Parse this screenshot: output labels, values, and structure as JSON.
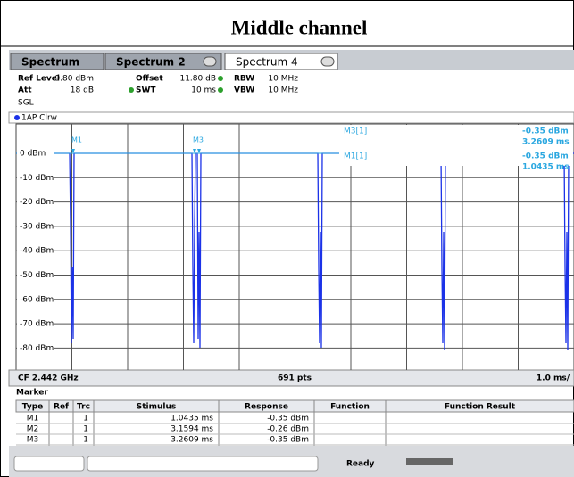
{
  "title": "Middle channel",
  "tabs": [
    "Spectrum",
    "Spectrum 2",
    "Spectrum 4"
  ],
  "settings": [
    [
      {
        "label": "Ref Level",
        "value": "9.80 dBm"
      },
      {
        "label": "Offset",
        "value": "11.80 dB"
      },
      {
        "label": "RBW",
        "value": "10 MHz"
      }
    ],
    [
      {
        "label": "Att",
        "value": "18 dB"
      },
      {
        "label": "SWT",
        "value": "10 ms"
      },
      {
        "label": "VBW",
        "value": "10 MHz"
      }
    ]
  ],
  "sweep_mode": "SGL",
  "trace_label": "1AP Clrw",
  "y_labels": [
    "0 dBm",
    "-10 dBm",
    "-20 dBm",
    "-30 dBm",
    "-40 dBm",
    "-50 dBm",
    "-60 dBm",
    "-70 dBm",
    "-80 dBm"
  ],
  "plot_markers": [
    "M1",
    "M3"
  ],
  "marker_info": [
    {
      "name": "M3[1]",
      "level": "-0.35 dBm",
      "time": "3.2609 ms"
    },
    {
      "name": "M1[1]",
      "level": "-0.35 dBm",
      "time": "1.0435 ms"
    }
  ],
  "footer": {
    "center": "CF 2.442 GHz",
    "points": "691 pts",
    "span": "1.0 ms/"
  },
  "marker_table": {
    "title": "Marker",
    "columns": [
      "Type",
      "Ref",
      "Trc",
      "Stimulus",
      "Response",
      "Function",
      "Function Result"
    ],
    "rows": [
      [
        "M1",
        "",
        "1",
        "1.0435 ms",
        "-0.35 dBm",
        "",
        ""
      ],
      [
        "M2",
        "",
        "1",
        "3.1594 ms",
        "-0.26 dBm",
        "",
        ""
      ],
      [
        "M3",
        "",
        "1",
        "3.2609 ms",
        "-0.35 dBm",
        "",
        ""
      ]
    ]
  },
  "status": "Ready"
}
